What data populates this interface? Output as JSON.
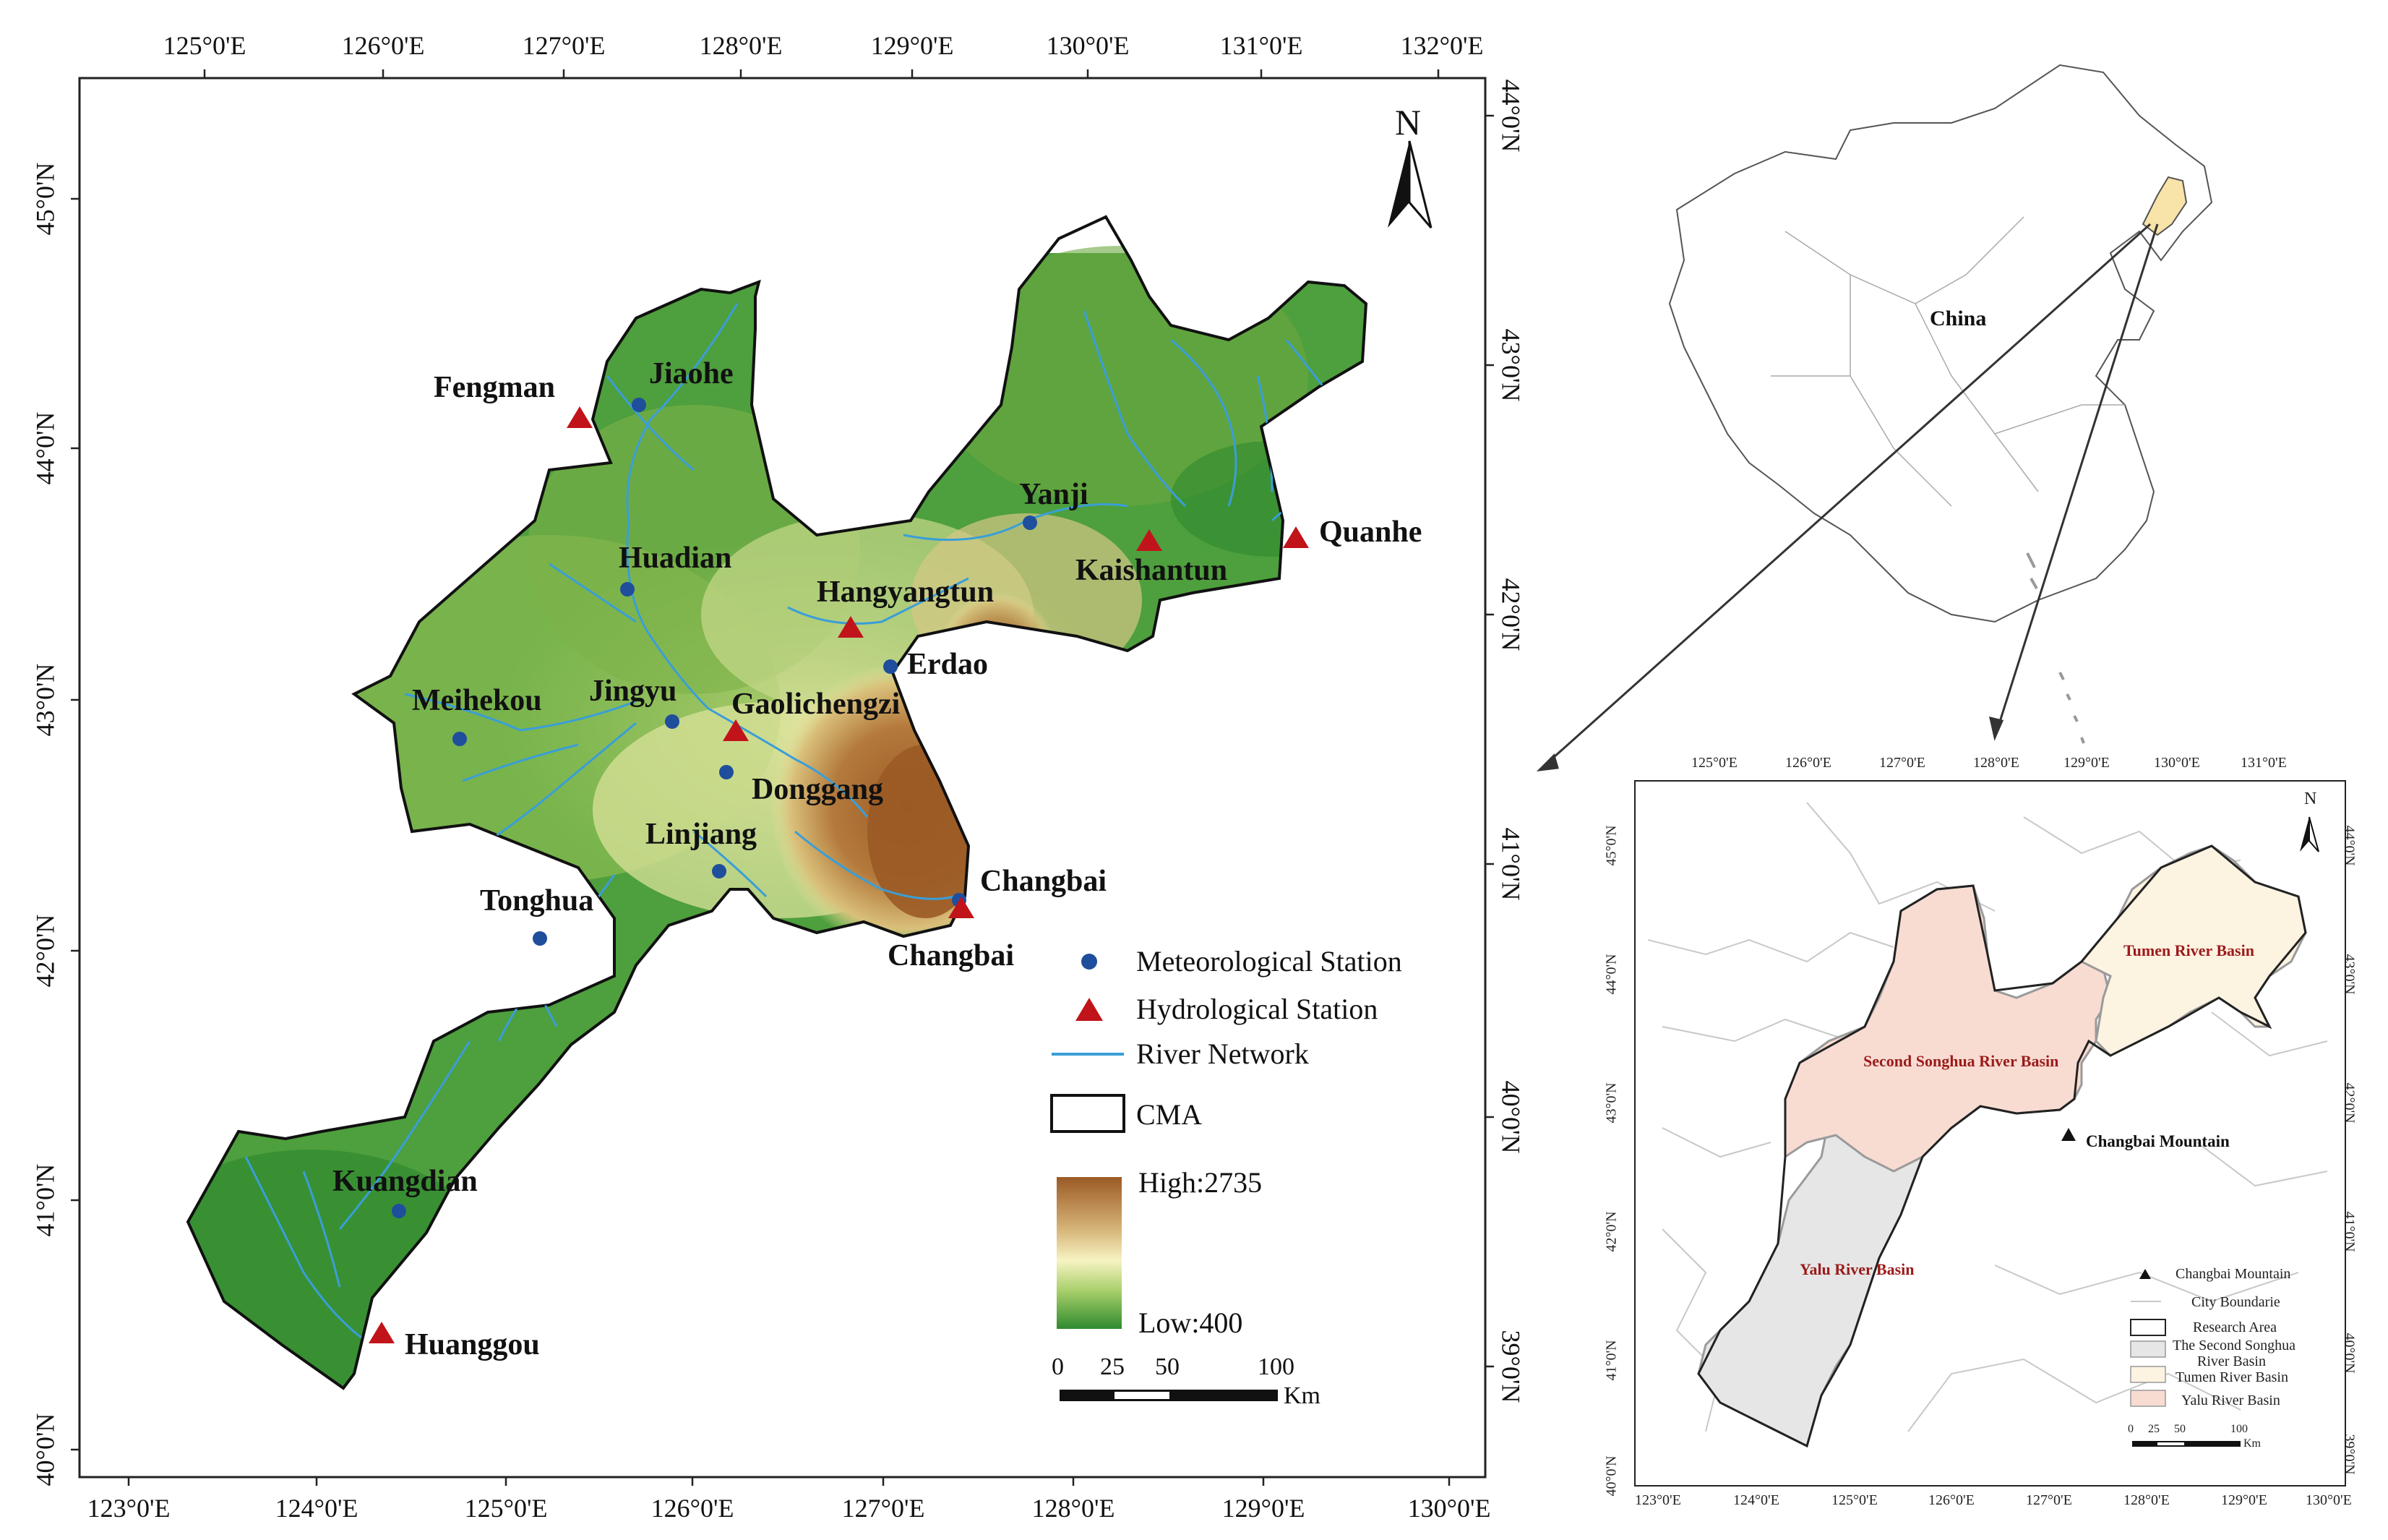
{
  "main_map": {
    "top_ticks": [
      "125°0'E",
      "126°0'E",
      "127°0'E",
      "128°0'E",
      "129°0'E",
      "130°0'E",
      "131°0'E",
      "132°0'E"
    ],
    "bottom_ticks": [
      "123°0'E",
      "124°0'E",
      "125°0'E",
      "126°0'E",
      "127°0'E",
      "128°0'E",
      "129°0'E",
      "130°0'E"
    ],
    "left_ticks": [
      "45°0'N",
      "44°0'N",
      "43°0'N",
      "42°0'N",
      "41°0'N",
      "40°0'N"
    ],
    "right_ticks": [
      "44°0'N",
      "43°0'N",
      "42°0'N",
      "41°0'N",
      "40°0'N",
      "39°0'N"
    ],
    "north_label": "N",
    "meteorological_stations": [
      "Jiaohe",
      "Huadian",
      "Meihekou",
      "Jingyu",
      "Yanji",
      "Erdao",
      "Donggang",
      "Linjiang",
      "Tonghua",
      "Kuangdian",
      "Changbai"
    ],
    "hydrological_stations": [
      "Fengman",
      "Hangyangtun",
      "Kaishantun",
      "Quanhe",
      "Gaolichengzi",
      "Changbai",
      "Huanggou"
    ],
    "legend": {
      "meteorological": "Meteorological Station",
      "hydrological": "Hydrological Station",
      "river": "River Network",
      "cma": "CMA",
      "high": "High:2735",
      "low": "Low:400",
      "scale": [
        "0",
        "25",
        "50",
        "100"
      ],
      "scale_unit": "Km"
    }
  },
  "inset_china": {
    "label": "China"
  },
  "inset_basins": {
    "top_ticks": [
      "125°0'E",
      "126°0'E",
      "127°0'E",
      "128°0'E",
      "129°0'E",
      "130°0'E",
      "131°0'E"
    ],
    "bottom_ticks": [
      "123°0'E",
      "124°0'E",
      "125°0'E",
      "126°0'E",
      "127°0'E",
      "128°0'E",
      "129°0'E",
      "130°0'E"
    ],
    "left_ticks": [
      "45°0'N",
      "44°0'N",
      "43°0'N",
      "42°0'N",
      "41°0'N",
      "40°0'N"
    ],
    "right_ticks": [
      "44°0'N",
      "43°0'N",
      "42°0'N",
      "41°0'N",
      "40°0'N",
      "39°0'N"
    ],
    "north_label": "N",
    "labels": {
      "tumen": "Tumen River Basin",
      "songhua": "Second Songhua River Basin",
      "yalu": "Yalu River Basin",
      "mountain": "Changbai Mountain"
    },
    "legend": {
      "mountain": "Changbai Mountain",
      "city": "City Boundarie",
      "research": "Research Area",
      "songhua_1": "The Second Songhua",
      "songhua_2": "River Basin",
      "tumen": "Tumen River Basin",
      "yalu": "Yalu River Basin"
    },
    "scale": [
      "0",
      "25",
      "50",
      "100"
    ],
    "scale_unit": "Km"
  },
  "colors": {
    "elev_low": "#2e8b2e",
    "elev_mid": "#f4f2b0",
    "elev_high": "#a0602a",
    "river": "#3a9ed8",
    "met_station": "#1f4e9c",
    "hydro_station": "#c0141a",
    "songhua_basin": "#f8dcd2",
    "tumen_basin": "#fdf3e1",
    "yalu_basin": "#e6e6e6",
    "inset_highlight": "#f8e3a8"
  }
}
